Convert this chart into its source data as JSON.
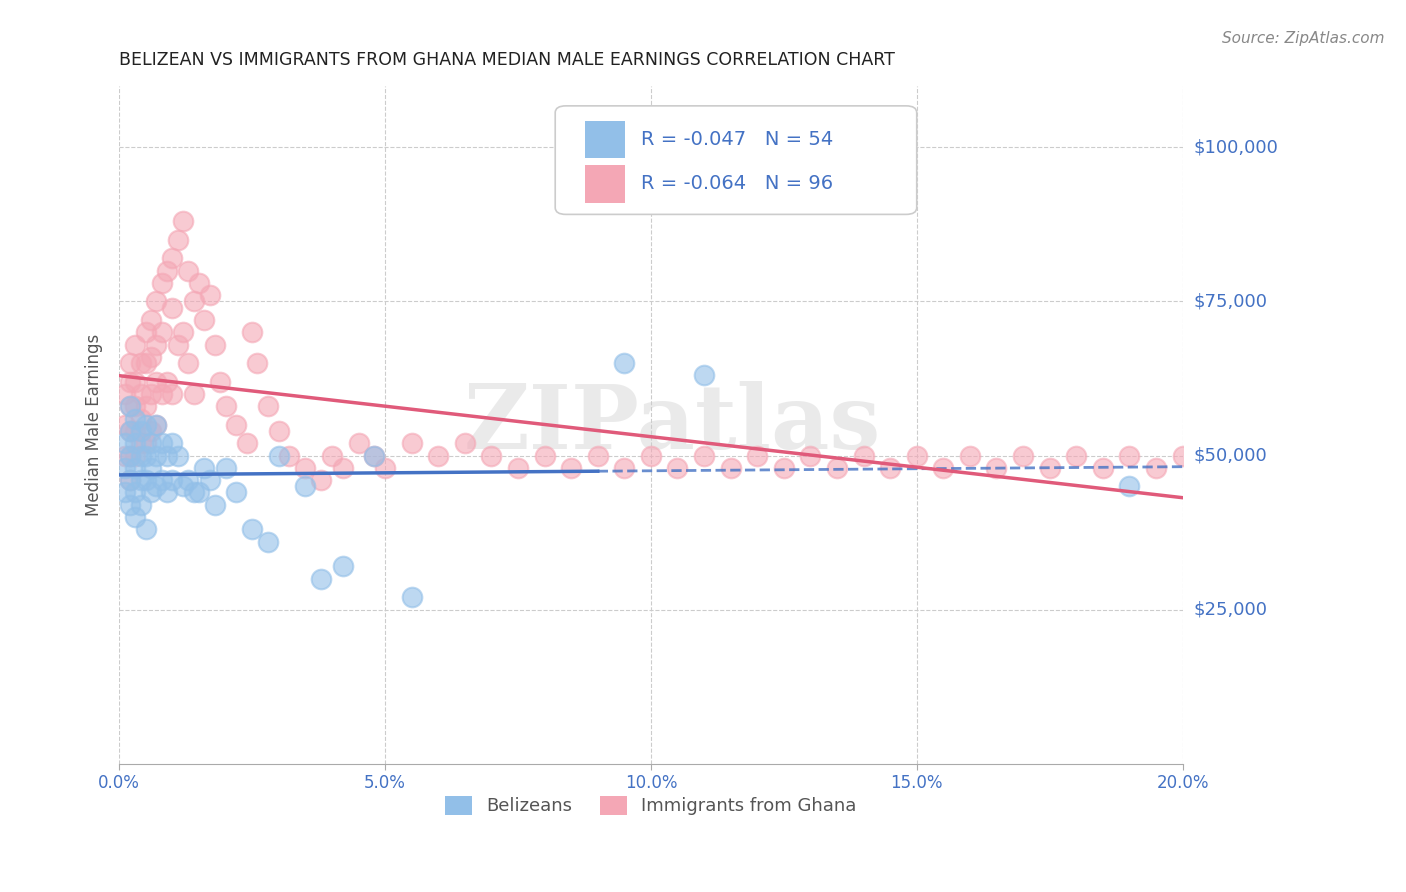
{
  "title": "BELIZEAN VS IMMIGRANTS FROM GHANA MEDIAN MALE EARNINGS CORRELATION CHART",
  "source": "Source: ZipAtlas.com",
  "ylabel": "Median Male Earnings",
  "xlim": [
    0.0,
    0.2
  ],
  "ylim": [
    0,
    110000
  ],
  "xtick_labels": [
    "0.0%",
    "5.0%",
    "10.0%",
    "15.0%",
    "20.0%"
  ],
  "xtick_vals": [
    0.0,
    0.05,
    0.1,
    0.15,
    0.2
  ],
  "ytick_vals": [
    25000,
    50000,
    75000,
    100000
  ],
  "ytick_labels": [
    "$25,000",
    "$50,000",
    "$75,000",
    "$100,000"
  ],
  "belizean_color": "#92bfe8",
  "ghana_color": "#f4a7b5",
  "belizean_R": -0.047,
  "belizean_N": 54,
  "ghana_R": -0.064,
  "ghana_N": 96,
  "legend_label_1": "Belizeans",
  "legend_label_2": "Immigrants from Ghana",
  "watermark": "ZIPatlas",
  "trendline_belizean_color": "#4472c4",
  "trendline_ghana_color": "#e05a7a",
  "grid_color": "#cccccc",
  "title_color": "#222222",
  "axis_color": "#4472c4",
  "source_color": "#888888",
  "background_color": "#ffffff",
  "belizean_scatter_x": [
    0.001,
    0.001,
    0.001,
    0.002,
    0.002,
    0.002,
    0.002,
    0.002,
    0.003,
    0.003,
    0.003,
    0.003,
    0.003,
    0.004,
    0.004,
    0.004,
    0.004,
    0.005,
    0.005,
    0.005,
    0.005,
    0.006,
    0.006,
    0.006,
    0.007,
    0.007,
    0.007,
    0.008,
    0.008,
    0.009,
    0.009,
    0.01,
    0.01,
    0.011,
    0.012,
    0.013,
    0.014,
    0.015,
    0.016,
    0.017,
    0.018,
    0.02,
    0.022,
    0.025,
    0.028,
    0.03,
    0.035,
    0.038,
    0.042,
    0.048,
    0.055,
    0.095,
    0.11,
    0.19
  ],
  "belizean_scatter_y": [
    52000,
    48000,
    44000,
    58000,
    54000,
    50000,
    46000,
    42000,
    56000,
    52000,
    48000,
    44000,
    40000,
    54000,
    50000,
    46000,
    42000,
    55000,
    50000,
    46000,
    38000,
    52000,
    48000,
    44000,
    55000,
    50000,
    45000,
    52000,
    46000,
    50000,
    44000,
    52000,
    46000,
    50000,
    45000,
    46000,
    44000,
    44000,
    48000,
    46000,
    42000,
    48000,
    44000,
    38000,
    36000,
    50000,
    45000,
    30000,
    32000,
    50000,
    27000,
    65000,
    63000,
    45000
  ],
  "ghana_scatter_x": [
    0.001,
    0.001,
    0.001,
    0.002,
    0.002,
    0.002,
    0.002,
    0.002,
    0.002,
    0.003,
    0.003,
    0.003,
    0.003,
    0.003,
    0.004,
    0.004,
    0.004,
    0.004,
    0.005,
    0.005,
    0.005,
    0.005,
    0.006,
    0.006,
    0.006,
    0.006,
    0.007,
    0.007,
    0.007,
    0.007,
    0.008,
    0.008,
    0.008,
    0.009,
    0.009,
    0.01,
    0.01,
    0.01,
    0.011,
    0.011,
    0.012,
    0.012,
    0.013,
    0.013,
    0.014,
    0.014,
    0.015,
    0.016,
    0.017,
    0.018,
    0.019,
    0.02,
    0.022,
    0.024,
    0.025,
    0.026,
    0.028,
    0.03,
    0.032,
    0.035,
    0.038,
    0.04,
    0.042,
    0.045,
    0.048,
    0.05,
    0.055,
    0.06,
    0.065,
    0.07,
    0.075,
    0.08,
    0.085,
    0.09,
    0.095,
    0.1,
    0.105,
    0.11,
    0.115,
    0.12,
    0.125,
    0.13,
    0.135,
    0.14,
    0.145,
    0.15,
    0.155,
    0.16,
    0.165,
    0.17,
    0.175,
    0.18,
    0.185,
    0.19,
    0.195,
    0.2
  ],
  "ghana_scatter_y": [
    60000,
    55000,
    50000,
    65000,
    62000,
    58000,
    54000,
    50000,
    46000,
    68000,
    62000,
    58000,
    54000,
    50000,
    65000,
    60000,
    56000,
    52000,
    70000,
    65000,
    58000,
    52000,
    72000,
    66000,
    60000,
    54000,
    75000,
    68000,
    62000,
    55000,
    78000,
    70000,
    60000,
    80000,
    62000,
    82000,
    74000,
    60000,
    85000,
    68000,
    88000,
    70000,
    80000,
    65000,
    75000,
    60000,
    78000,
    72000,
    76000,
    68000,
    62000,
    58000,
    55000,
    52000,
    70000,
    65000,
    58000,
    54000,
    50000,
    48000,
    46000,
    50000,
    48000,
    52000,
    50000,
    48000,
    52000,
    50000,
    52000,
    50000,
    48000,
    50000,
    48000,
    50000,
    48000,
    50000,
    48000,
    50000,
    48000,
    50000,
    48000,
    50000,
    48000,
    50000,
    48000,
    50000,
    48000,
    50000,
    48000,
    50000,
    48000,
    50000,
    48000,
    50000,
    48000,
    50000
  ]
}
